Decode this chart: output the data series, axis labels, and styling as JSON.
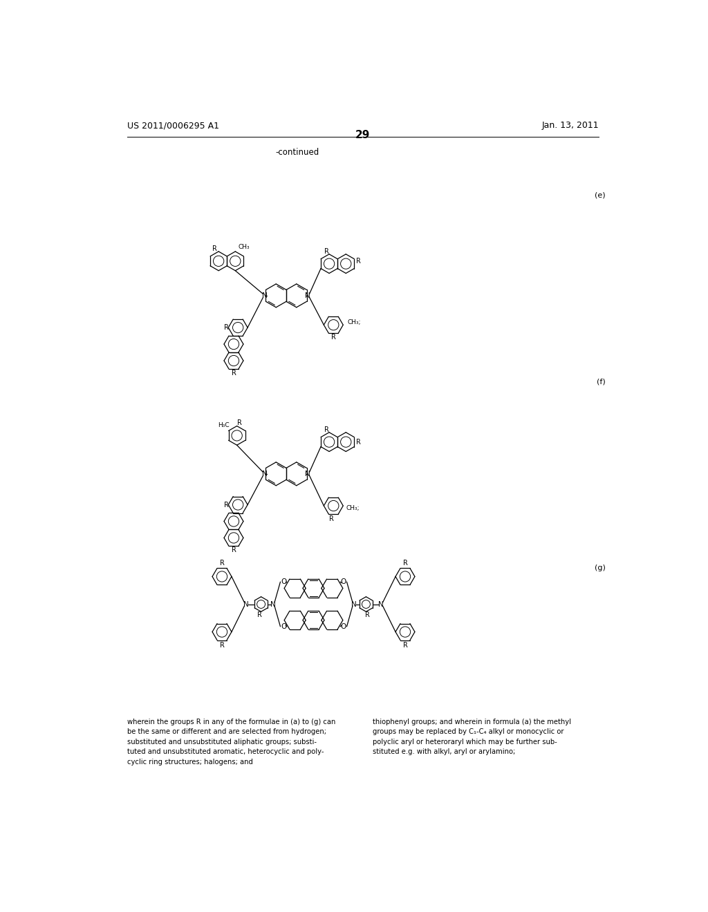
{
  "page_number": "29",
  "patent_number": "US 2011/0006295 A1",
  "patent_date": "Jan. 13, 2011",
  "continued_label": "-continued",
  "label_e": "(e)",
  "label_f": "(f)",
  "label_g": "(g)",
  "bg_color": "#ffffff",
  "text_color": "#000000",
  "bottom_text_left": "wherein the groups R in any of the formulae in (a) to (g) can\nbe the same or different and are selected from hydrogen;\nsubstituted and unsubstituted aliphatic groups; substi-\ntuted and unsubstituted aromatic, heterocyclic and poly-\ncyclic ring structures; halogens; and",
  "bottom_text_right": "thiophenyl groups; and wherein in formula (a) the methyl\ngroups may be replaced by C₁-C₄ alkyl or monocyclic or\npolyclic aryl or heteroraryl which may be further sub-\nstituted e.g. with alkyl, aryl or arylamino;"
}
